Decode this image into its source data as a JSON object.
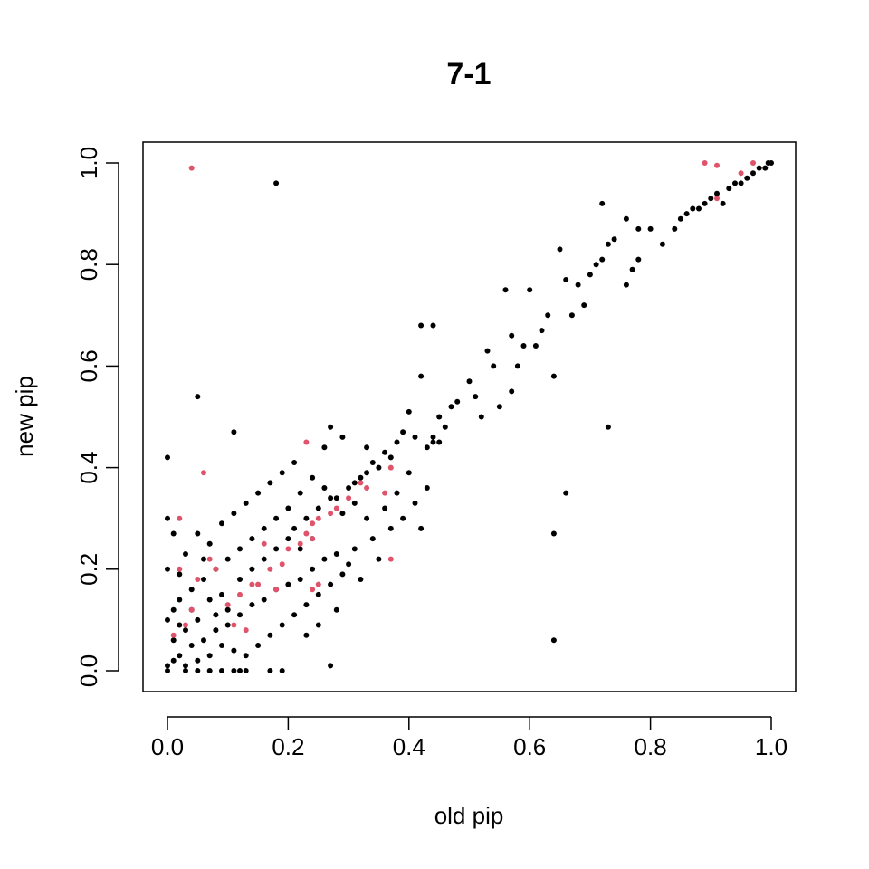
{
  "chart_data": {
    "type": "scatter",
    "title": "7-1",
    "xlabel": "old pip",
    "ylabel": "new pip",
    "xlim": [
      0.0,
      1.0
    ],
    "ylim": [
      0.0,
      1.0
    ],
    "xticks": [
      "0.0",
      "0.2",
      "0.4",
      "0.6",
      "0.8",
      "1.0"
    ],
    "yticks": [
      "0.0",
      "0.2",
      "0.4",
      "0.6",
      "0.8",
      "1.0"
    ],
    "grid": false,
    "legend": "none",
    "series": [
      {
        "color": "#000000",
        "points": [
          [
            0.18,
            0.96
          ],
          [
            0.05,
            0.54
          ],
          [
            0.0,
            0.42
          ],
          [
            0.11,
            0.47
          ],
          [
            0.27,
            0.01
          ],
          [
            0.64,
            0.06
          ],
          [
            0.64,
            0.27
          ],
          [
            0.66,
            0.35
          ],
          [
            0.73,
            0.48
          ],
          [
            0.42,
            0.28
          ],
          [
            0.3,
            0.21
          ],
          [
            0.64,
            0.58
          ],
          [
            0.42,
            0.68
          ],
          [
            0.44,
            0.68
          ],
          [
            0.56,
            0.75
          ],
          [
            0.6,
            0.75
          ],
          [
            0.65,
            0.83
          ],
          [
            0.72,
            0.92
          ],
          [
            0.76,
            0.89
          ],
          [
            0.62,
            0.67
          ],
          [
            0.63,
            0.7
          ],
          [
            0.66,
            0.77
          ],
          [
            0.67,
            0.7
          ],
          [
            0.68,
            0.76
          ],
          [
            0.69,
            0.72
          ],
          [
            0.7,
            0.78
          ],
          [
            0.71,
            0.8
          ],
          [
            0.72,
            0.81
          ],
          [
            0.73,
            0.84
          ],
          [
            0.74,
            0.85
          ],
          [
            0.76,
            0.76
          ],
          [
            0.77,
            0.79
          ],
          [
            0.78,
            0.81
          ],
          [
            0.78,
            0.87
          ],
          [
            0.8,
            0.87
          ],
          [
            0.82,
            0.84
          ],
          [
            0.84,
            0.87
          ],
          [
            0.85,
            0.89
          ],
          [
            0.86,
            0.9
          ],
          [
            0.87,
            0.91
          ],
          [
            0.88,
            0.91
          ],
          [
            0.89,
            0.92
          ],
          [
            0.9,
            0.93
          ],
          [
            0.91,
            0.94
          ],
          [
            0.92,
            0.92
          ],
          [
            0.93,
            0.95
          ],
          [
            0.94,
            0.96
          ],
          [
            0.95,
            0.96
          ],
          [
            0.96,
            0.97
          ],
          [
            0.97,
            0.98
          ],
          [
            0.98,
            0.99
          ],
          [
            0.99,
            0.99
          ],
          [
            1.0,
            1.0
          ],
          [
            0.995,
            1.0
          ],
          [
            0.55,
            0.52
          ],
          [
            0.57,
            0.55
          ],
          [
            0.58,
            0.6
          ],
          [
            0.59,
            0.64
          ],
          [
            0.61,
            0.64
          ],
          [
            0.53,
            0.63
          ],
          [
            0.54,
            0.6
          ],
          [
            0.57,
            0.66
          ],
          [
            0.5,
            0.57
          ],
          [
            0.51,
            0.54
          ],
          [
            0.48,
            0.53
          ],
          [
            0.47,
            0.52
          ],
          [
            0.45,
            0.5
          ],
          [
            0.46,
            0.48
          ],
          [
            0.44,
            0.45
          ],
          [
            0.43,
            0.44
          ],
          [
            0.45,
            0.45
          ],
          [
            0.42,
            0.58
          ],
          [
            0.4,
            0.51
          ],
          [
            0.36,
            0.43
          ],
          [
            0.37,
            0.42
          ],
          [
            0.39,
            0.47
          ],
          [
            0.41,
            0.46
          ],
          [
            0.38,
            0.45
          ],
          [
            0.35,
            0.4
          ],
          [
            0.34,
            0.41
          ],
          [
            0.33,
            0.39
          ],
          [
            0.32,
            0.38
          ],
          [
            0.31,
            0.37
          ],
          [
            0.3,
            0.36
          ],
          [
            0.29,
            0.46
          ],
          [
            0.27,
            0.48
          ],
          [
            0.26,
            0.44
          ],
          [
            0.28,
            0.34
          ],
          [
            0.33,
            0.3
          ],
          [
            0.36,
            0.32
          ],
          [
            0.38,
            0.35
          ],
          [
            0.4,
            0.39
          ],
          [
            0.43,
            0.36
          ],
          [
            0.41,
            0.33
          ],
          [
            0.39,
            0.3
          ],
          [
            0.37,
            0.28
          ],
          [
            0.34,
            0.26
          ],
          [
            0.31,
            0.24
          ],
          [
            0.28,
            0.23
          ],
          [
            0.26,
            0.22
          ],
          [
            0.24,
            0.2
          ],
          [
            0.22,
            0.18
          ],
          [
            0.2,
            0.17
          ],
          [
            0.18,
            0.16
          ],
          [
            0.16,
            0.14
          ],
          [
            0.14,
            0.13
          ],
          [
            0.12,
            0.11
          ],
          [
            0.1,
            0.09
          ],
          [
            0.08,
            0.08
          ],
          [
            0.06,
            0.06
          ],
          [
            0.04,
            0.05
          ],
          [
            0.02,
            0.03
          ],
          [
            0.01,
            0.02
          ],
          [
            0.0,
            0.01
          ],
          [
            0.0,
            0.0
          ],
          [
            0.03,
            0.0
          ],
          [
            0.05,
            0.0
          ],
          [
            0.07,
            0.0
          ],
          [
            0.09,
            0.0
          ],
          [
            0.11,
            0.0
          ],
          [
            0.12,
            0.0
          ],
          [
            0.13,
            0.0
          ],
          [
            0.17,
            0.0
          ],
          [
            0.19,
            0.0
          ],
          [
            0.21,
            0.28
          ],
          [
            0.23,
            0.3
          ],
          [
            0.25,
            0.32
          ],
          [
            0.27,
            0.34
          ],
          [
            0.29,
            0.31
          ],
          [
            0.31,
            0.33
          ],
          [
            0.22,
            0.35
          ],
          [
            0.2,
            0.32
          ],
          [
            0.18,
            0.3
          ],
          [
            0.16,
            0.28
          ],
          [
            0.14,
            0.26
          ],
          [
            0.12,
            0.24
          ],
          [
            0.1,
            0.22
          ],
          [
            0.08,
            0.2
          ],
          [
            0.06,
            0.18
          ],
          [
            0.04,
            0.16
          ],
          [
            0.02,
            0.14
          ],
          [
            0.01,
            0.12
          ],
          [
            0.0,
            0.1
          ],
          [
            0.0,
            0.2
          ],
          [
            0.0,
            0.3
          ],
          [
            0.01,
            0.27
          ],
          [
            0.03,
            0.23
          ],
          [
            0.05,
            0.27
          ],
          [
            0.07,
            0.25
          ],
          [
            0.09,
            0.29
          ],
          [
            0.11,
            0.31
          ],
          [
            0.13,
            0.33
          ],
          [
            0.15,
            0.35
          ],
          [
            0.17,
            0.37
          ],
          [
            0.19,
            0.39
          ],
          [
            0.21,
            0.41
          ],
          [
            0.24,
            0.38
          ],
          [
            0.26,
            0.36
          ],
          [
            0.15,
            0.05
          ],
          [
            0.17,
            0.07
          ],
          [
            0.19,
            0.09
          ],
          [
            0.21,
            0.11
          ],
          [
            0.23,
            0.13
          ],
          [
            0.25,
            0.15
          ],
          [
            0.27,
            0.17
          ],
          [
            0.29,
            0.19
          ],
          [
            0.13,
            0.03
          ],
          [
            0.11,
            0.04
          ],
          [
            0.09,
            0.05
          ],
          [
            0.07,
            0.03
          ],
          [
            0.05,
            0.02
          ],
          [
            0.03,
            0.01
          ],
          [
            0.09,
            0.15
          ],
          [
            0.1,
            0.12
          ],
          [
            0.12,
            0.18
          ],
          [
            0.14,
            0.2
          ],
          [
            0.16,
            0.22
          ],
          [
            0.18,
            0.24
          ],
          [
            0.2,
            0.26
          ],
          [
            0.22,
            0.24
          ],
          [
            0.24,
            0.26
          ],
          [
            0.05,
            0.1
          ],
          [
            0.07,
            0.14
          ],
          [
            0.08,
            0.11
          ],
          [
            0.03,
            0.08
          ],
          [
            0.04,
            0.12
          ],
          [
            0.06,
            0.22
          ],
          [
            0.02,
            0.19
          ],
          [
            0.01,
            0.06
          ],
          [
            0.02,
            0.09
          ],
          [
            0.32,
            0.18
          ],
          [
            0.35,
            0.22
          ],
          [
            0.28,
            0.12
          ],
          [
            0.25,
            0.09
          ],
          [
            0.23,
            0.07
          ],
          [
            0.44,
            0.46
          ],
          [
            0.52,
            0.5
          ],
          [
            0.33,
            0.44
          ]
        ]
      },
      {
        "color": "#df536b",
        "points": [
          [
            0.04,
            0.99
          ],
          [
            0.89,
            1.0
          ],
          [
            0.91,
            0.995
          ],
          [
            0.95,
            0.98
          ],
          [
            0.97,
            1.0
          ],
          [
            0.91,
            0.93
          ],
          [
            0.23,
            0.45
          ],
          [
            0.06,
            0.39
          ],
          [
            0.02,
            0.3
          ],
          [
            0.37,
            0.22
          ],
          [
            0.24,
            0.16
          ],
          [
            0.25,
            0.17
          ],
          [
            0.24,
            0.29
          ],
          [
            0.25,
            0.3
          ],
          [
            0.23,
            0.27
          ],
          [
            0.24,
            0.26
          ],
          [
            0.2,
            0.24
          ],
          [
            0.22,
            0.25
          ],
          [
            0.16,
            0.25
          ],
          [
            0.17,
            0.2
          ],
          [
            0.18,
            0.16
          ],
          [
            0.15,
            0.17
          ],
          [
            0.13,
            0.08
          ],
          [
            0.11,
            0.09
          ],
          [
            0.1,
            0.13
          ],
          [
            0.12,
            0.15
          ],
          [
            0.07,
            0.22
          ],
          [
            0.05,
            0.18
          ],
          [
            0.04,
            0.12
          ],
          [
            0.03,
            0.09
          ],
          [
            0.08,
            0.2
          ],
          [
            0.32,
            0.37
          ],
          [
            0.33,
            0.36
          ],
          [
            0.36,
            0.35
          ],
          [
            0.37,
            0.4
          ],
          [
            0.3,
            0.34
          ],
          [
            0.28,
            0.32
          ],
          [
            0.27,
            0.31
          ],
          [
            0.01,
            0.07
          ],
          [
            0.02,
            0.2
          ],
          [
            0.14,
            0.17
          ],
          [
            0.19,
            0.21
          ]
        ]
      }
    ]
  }
}
